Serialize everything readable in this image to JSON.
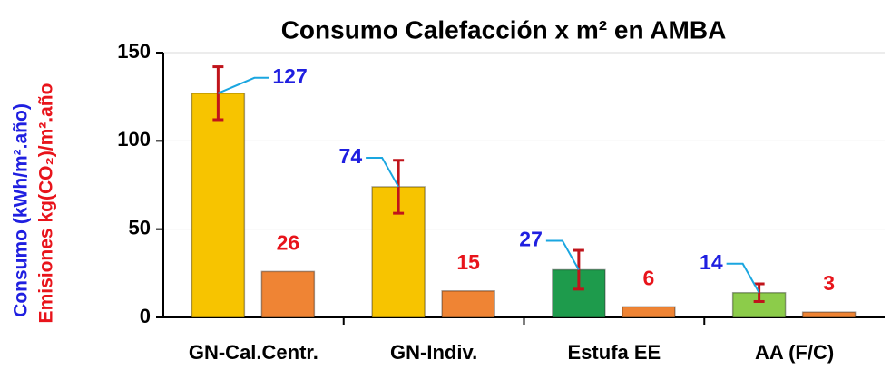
{
  "chart_data": {
    "type": "bar",
    "title": "Consumo Calefacción x m² en  AMBA",
    "ylabel": [
      "Consumo (kWh/m².año)",
      "Emisiones kg(CO₂)/m².año"
    ],
    "ylabel_colors": [
      "#1f1fe0",
      "#e8141b"
    ],
    "categories": [
      "GN-Cal.Centr.",
      "GN-Indiv.",
      "Estufa EE",
      "AA (F/C)"
    ],
    "series": [
      {
        "colors": [
          "#f7c400",
          "#f7c400",
          "#1e9b4c",
          "#8ccc4a"
        ],
        "values": [
          127,
          74,
          27,
          14
        ],
        "errors": [
          15,
          15,
          11,
          5
        ],
        "label_color": "#1f1fe0",
        "error_color": "#c0141b"
      },
      {
        "color": "#ef8434",
        "values": [
          26,
          15,
          6,
          3
        ],
        "label_color": "#e8141b"
      }
    ],
    "ylim": [
      0,
      150
    ],
    "yticks": [
      0,
      50,
      100,
      150
    ],
    "grid": true
  }
}
